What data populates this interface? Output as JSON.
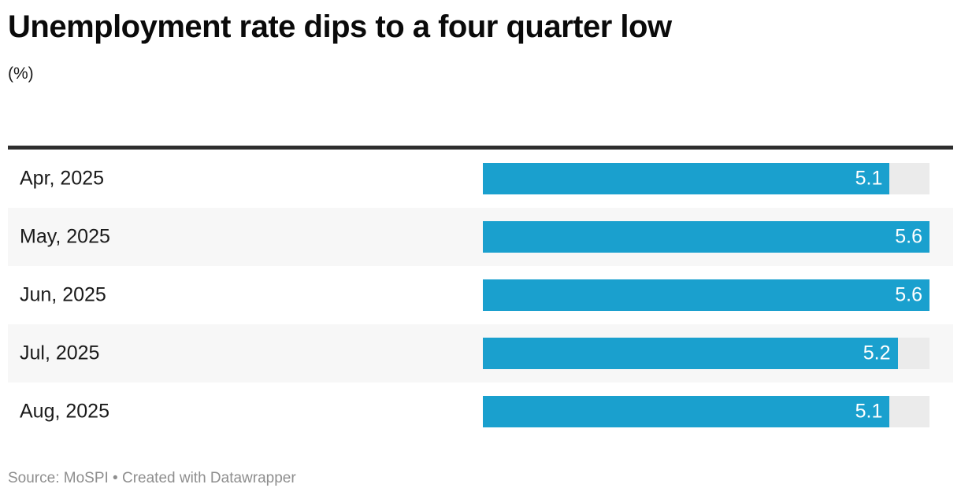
{
  "header": {
    "title": "Unemployment rate dips to a four quarter low",
    "subtitle": "(%)"
  },
  "footer": {
    "attribution": "Source: MoSPI • Created with Datawrapper"
  },
  "chart_data": {
    "type": "bar",
    "orientation": "horizontal",
    "title": "Unemployment rate dips to a four quarter low",
    "xlabel": "",
    "ylabel": "(%)",
    "categories": [
      "Apr, 2025",
      "May, 2025",
      "Jun, 2025",
      "Jul, 2025",
      "Aug, 2025"
    ],
    "values": [
      5.1,
      5.6,
      5.6,
      5.2,
      5.1
    ],
    "value_labels": [
      "5.1",
      "5.6",
      "5.6",
      "5.2",
      "5.1"
    ],
    "xlim": [
      0,
      5.6
    ],
    "grid": false,
    "legend": "none",
    "colors": {
      "bar": "#1aa0ce",
      "bar_track": "#ebebeb",
      "row_stripe": "#f7f7f7",
      "top_rule": "#2e2e2e",
      "value_text": "#ffffff",
      "label_text": "#1a1a1a",
      "footer_text": "#8e8e8e"
    }
  }
}
